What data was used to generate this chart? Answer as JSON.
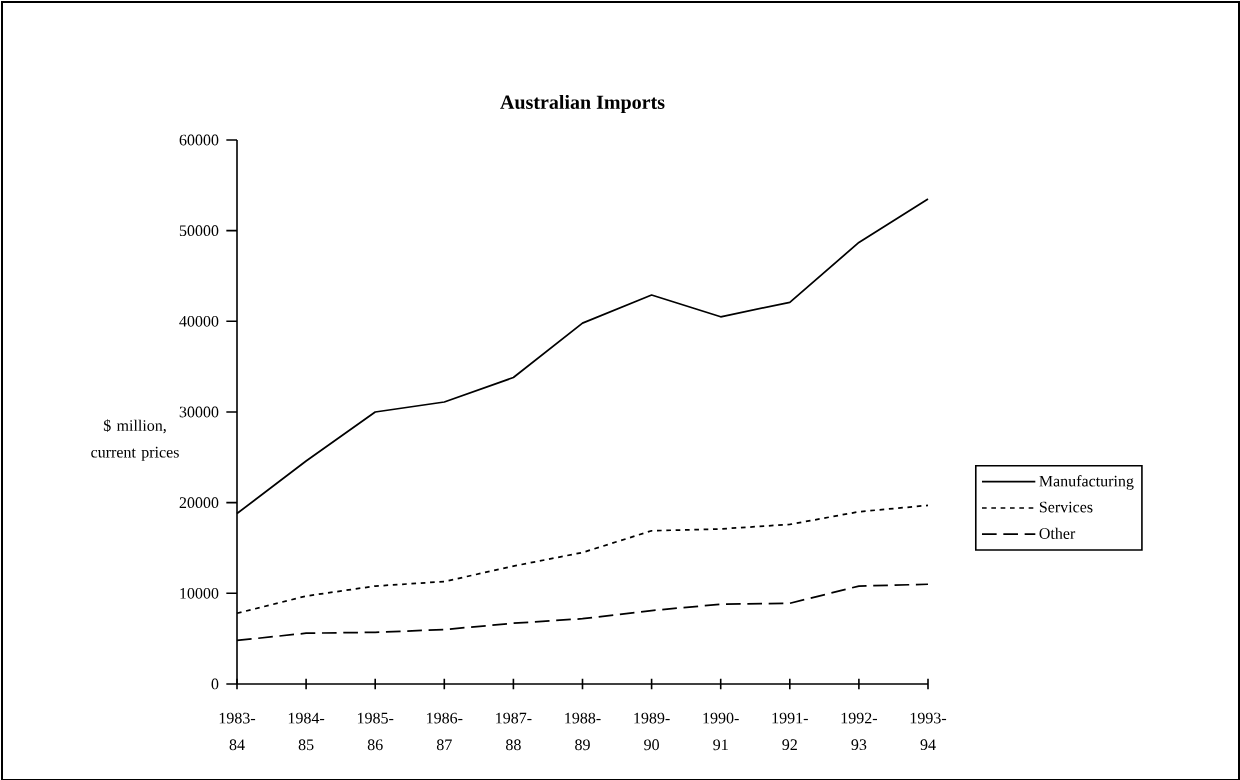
{
  "chart_data": {
    "type": "line",
    "title": "Australian Imports",
    "ylabel": "$ million, current prices",
    "categories": [
      "1983-84",
      "1984-85",
      "1985-86",
      "1986-87",
      "1987-88",
      "1988-89",
      "1989-90",
      "1990-91",
      "1991-92",
      "1992-93",
      "1993-94"
    ],
    "series": [
      {
        "name": "Manufacturing",
        "color": "#000000",
        "line_style": "solid",
        "values": [
          18800,
          24600,
          30000,
          31100,
          33800,
          39800,
          42900,
          40500,
          42100,
          48700,
          53500
        ]
      },
      {
        "name": "Services",
        "color": "#000000",
        "line_style": "dotted",
        "values": [
          7800,
          9700,
          10800,
          11300,
          13000,
          14500,
          16900,
          17100,
          17600,
          19000,
          19700
        ]
      },
      {
        "name": "Other",
        "color": "#000000",
        "line_style": "dashed",
        "values": [
          4800,
          5600,
          5700,
          6000,
          6700,
          7200,
          8100,
          8800,
          8900,
          10800,
          11000
        ]
      }
    ],
    "ylim": [
      0,
      60000
    ],
    "yticks": [
      0,
      10000,
      20000,
      30000,
      40000,
      50000,
      60000
    ],
    "legend": "right",
    "grid": false
  }
}
